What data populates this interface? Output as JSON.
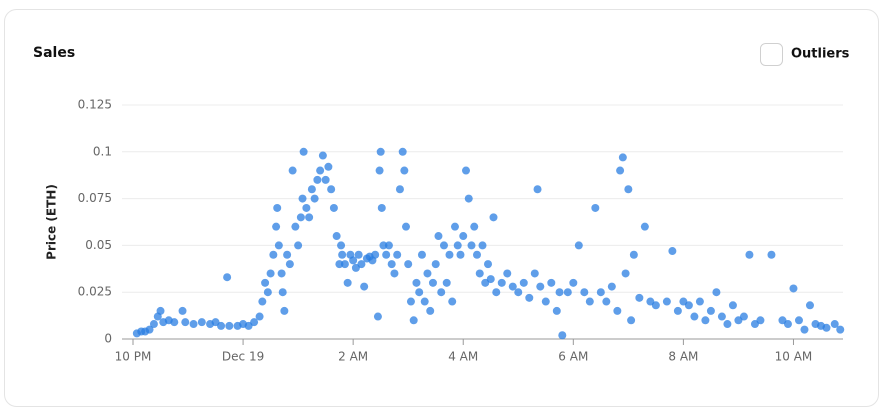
{
  "chart_data": {
    "type": "scatter",
    "title": "Sales",
    "toggle_label": "Outliers",
    "y_label": "Price (ETH)",
    "color": "#2a7de1",
    "grid": true,
    "xlim": [
      -2.2,
      10.9
    ],
    "xticks": [
      {
        "value": -2,
        "label": "10 PM"
      },
      {
        "value": 0,
        "label": "Dec 19"
      },
      {
        "value": 2,
        "label": "2 AM"
      },
      {
        "value": 4,
        "label": "4 AM"
      },
      {
        "value": 6,
        "label": "6 AM"
      },
      {
        "value": 8,
        "label": "8 AM"
      },
      {
        "value": 10,
        "label": "10 AM"
      }
    ],
    "ylim": [
      0,
      0.125
    ],
    "yticks": [
      0,
      0.025,
      0.05,
      0.075,
      0.1,
      0.125
    ],
    "x": [
      -1.93,
      -1.85,
      -1.78,
      -1.7,
      -1.62,
      -1.55,
      -1.5,
      -1.45,
      -1.35,
      -1.25,
      -1.1,
      -1.05,
      -0.9,
      -0.75,
      -0.6,
      -0.5,
      -0.4,
      -0.29,
      -0.25,
      -0.1,
      0.0,
      0.1,
      0.2,
      0.3,
      0.35,
      0.4,
      0.45,
      0.5,
      0.55,
      0.6,
      0.62,
      0.65,
      0.7,
      0.72,
      0.75,
      0.8,
      0.85,
      0.9,
      0.95,
      1.0,
      1.05,
      1.08,
      1.1,
      1.15,
      1.2,
      1.25,
      1.3,
      1.35,
      1.4,
      1.45,
      1.5,
      1.55,
      1.6,
      1.65,
      1.7,
      1.75,
      1.78,
      1.8,
      1.85,
      1.9,
      1.95,
      2.0,
      2.05,
      2.1,
      2.15,
      2.2,
      2.25,
      2.3,
      2.35,
      2.4,
      2.45,
      2.48,
      2.5,
      2.52,
      2.55,
      2.6,
      2.65,
      2.7,
      2.75,
      2.8,
      2.85,
      2.9,
      2.93,
      2.96,
      3.0,
      3.05,
      3.1,
      3.15,
      3.2,
      3.25,
      3.3,
      3.35,
      3.4,
      3.45,
      3.5,
      3.55,
      3.6,
      3.65,
      3.7,
      3.75,
      3.8,
      3.85,
      3.9,
      3.95,
      4.0,
      4.05,
      4.1,
      4.15,
      4.2,
      4.25,
      4.3,
      4.35,
      4.4,
      4.45,
      4.5,
      4.55,
      4.6,
      4.7,
      4.8,
      4.9,
      5.0,
      5.1,
      5.2,
      5.3,
      5.35,
      5.4,
      5.5,
      5.6,
      5.7,
      5.75,
      5.8,
      5.9,
      6.0,
      6.1,
      6.2,
      6.3,
      6.4,
      6.5,
      6.6,
      6.7,
      6.8,
      6.85,
      6.9,
      6.95,
      7.0,
      7.05,
      7.1,
      7.2,
      7.3,
      7.4,
      7.5,
      7.7,
      7.8,
      7.9,
      8.0,
      8.1,
      8.2,
      8.3,
      8.4,
      8.5,
      8.6,
      8.7,
      8.8,
      8.9,
      9.0,
      9.1,
      9.2,
      9.3,
      9.4,
      9.6,
      9.8,
      9.9,
      10.0,
      10.1,
      10.2,
      10.3,
      10.4,
      10.5,
      10.6,
      10.75,
      10.85
    ],
    "values": [
      0.003,
      0.004,
      0.004,
      0.005,
      0.008,
      0.012,
      0.015,
      0.009,
      0.01,
      0.009,
      0.015,
      0.009,
      0.008,
      0.009,
      0.008,
      0.009,
      0.007,
      0.033,
      0.007,
      0.007,
      0.008,
      0.007,
      0.009,
      0.012,
      0.02,
      0.03,
      0.025,
      0.035,
      0.045,
      0.06,
      0.07,
      0.05,
      0.035,
      0.025,
      0.015,
      0.045,
      0.04,
      0.09,
      0.06,
      0.05,
      0.065,
      0.075,
      0.1,
      0.07,
      0.065,
      0.08,
      0.075,
      0.085,
      0.09,
      0.098,
      0.085,
      0.092,
      0.08,
      0.07,
      0.055,
      0.04,
      0.05,
      0.045,
      0.04,
      0.03,
      0.045,
      0.042,
      0.038,
      0.045,
      0.04,
      0.028,
      0.043,
      0.044,
      0.042,
      0.045,
      0.012,
      0.09,
      0.1,
      0.07,
      0.05,
      0.045,
      0.05,
      0.04,
      0.035,
      0.045,
      0.08,
      0.1,
      0.09,
      0.06,
      0.04,
      0.02,
      0.01,
      0.03,
      0.025,
      0.045,
      0.02,
      0.035,
      0.015,
      0.03,
      0.04,
      0.055,
      0.025,
      0.05,
      0.03,
      0.045,
      0.02,
      0.06,
      0.05,
      0.045,
      0.055,
      0.09,
      0.075,
      0.05,
      0.06,
      0.045,
      0.035,
      0.05,
      0.03,
      0.04,
      0.032,
      0.065,
      0.025,
      0.03,
      0.035,
      0.028,
      0.025,
      0.03,
      0.022,
      0.035,
      0.08,
      0.028,
      0.02,
      0.03,
      0.015,
      0.025,
      0.002,
      0.025,
      0.03,
      0.05,
      0.025,
      0.02,
      0.07,
      0.025,
      0.02,
      0.028,
      0.015,
      0.09,
      0.097,
      0.035,
      0.08,
      0.01,
      0.045,
      0.022,
      0.06,
      0.02,
      0.018,
      0.02,
      0.047,
      0.015,
      0.02,
      0.018,
      0.012,
      0.02,
      0.01,
      0.015,
      0.025,
      0.012,
      0.008,
      0.018,
      0.01,
      0.012,
      0.045,
      0.008,
      0.01,
      0.045,
      0.01,
      0.008,
      0.027,
      0.01,
      0.005,
      0.018,
      0.008,
      0.007,
      0.006,
      0.008,
      0.005
    ]
  }
}
